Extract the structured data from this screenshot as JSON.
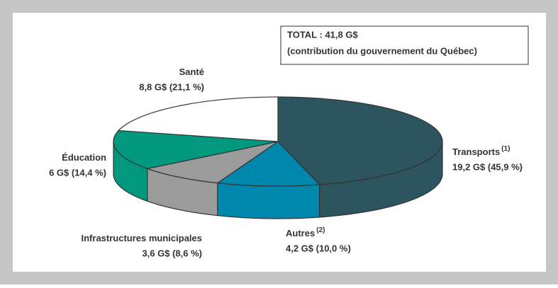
{
  "chart_data": {
    "type": "pie3d",
    "title": "TOTAL : 41,8 G$",
    "subtitle": "(contribution du gouvernement du Québec)",
    "categories": [
      "Transports",
      "Autres",
      "Infrastructures municipales",
      "Éducation",
      "Santé"
    ],
    "values": [
      19.2,
      4.2,
      3.6,
      6,
      8.8
    ],
    "value_labels": [
      "19,2 G$ (45,9 %)",
      "4,2 G$ (10,0 %)",
      "3,6 G$ (8,6 %)",
      "6 G$ (14,4 %)",
      "8,8 G$ (21,1 %)"
    ],
    "colors": [
      "#2c5560",
      "#0087ae",
      "#9b9b9b",
      "#00997f",
      "#ffffff"
    ],
    "annotations": [
      {
        "category": "Transports",
        "text": "(1)"
      },
      {
        "category": "Autres",
        "text": "(2)"
      }
    ]
  }
}
